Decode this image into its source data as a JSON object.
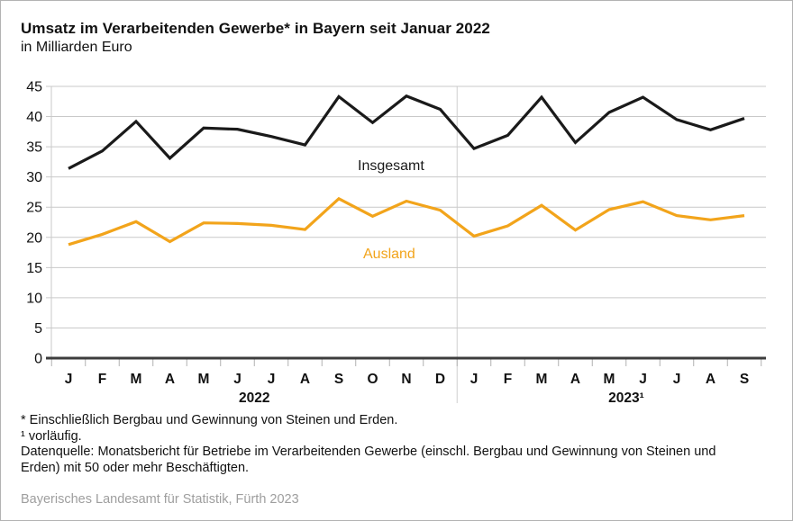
{
  "title": "Umsatz im Verarbeitenden Gewerbe* in Bayern seit Januar 2022",
  "subtitle": "in Milliarden Euro",
  "footnotes": [
    "* Einschließlich Bergbau und Gewinnung von Steinen und Erden.",
    "¹ vorläufig.",
    "Datenquelle: Monatsbericht für Betriebe im Verarbeitenden Gewerbe (einschl. Bergbau und Gewinnung von Steinen und",
    "Erden) mit 50 oder mehr Beschäftigten."
  ],
  "credit": "Bayerisches Landesamt für Statistik, Fürth 2023",
  "chart_data": {
    "type": "line",
    "title": "Umsatz im Verarbeitenden Gewerbe* in Bayern seit Januar 2022",
    "ylabel": "in Milliarden Euro",
    "ylim": [
      0,
      45
    ],
    "y_ticks": [
      0,
      5,
      10,
      15,
      20,
      25,
      30,
      35,
      40,
      45
    ],
    "grid": "horizontal",
    "legend_position": "inline-annotations",
    "x_tick_labels": [
      "J",
      "F",
      "M",
      "A",
      "M",
      "J",
      "J",
      "A",
      "S",
      "O",
      "N",
      "D",
      "J",
      "F",
      "M",
      "A",
      "M",
      "J",
      "J",
      "A",
      "S"
    ],
    "year_labels": [
      "2022",
      "2023¹"
    ],
    "divider_after_index": 11,
    "series": [
      {
        "name": "Insgesamt",
        "color": "#1a1a1a",
        "values": [
          31.4,
          34.3,
          39.2,
          33.1,
          38.1,
          37.9,
          36.7,
          35.3,
          43.3,
          39.0,
          43.4,
          41.2,
          34.7,
          36.9,
          43.2,
          35.7,
          40.7,
          43.2,
          39.5,
          37.8,
          39.7
        ]
      },
      {
        "name": "Ausland",
        "color": "#F2A41B",
        "values": [
          18.8,
          20.5,
          22.6,
          19.3,
          22.4,
          22.3,
          22.0,
          21.3,
          26.4,
          23.5,
          26.0,
          24.5,
          20.2,
          21.9,
          25.3,
          21.2,
          24.6,
          25.9,
          23.6,
          22.9,
          23.6
        ]
      }
    ]
  }
}
